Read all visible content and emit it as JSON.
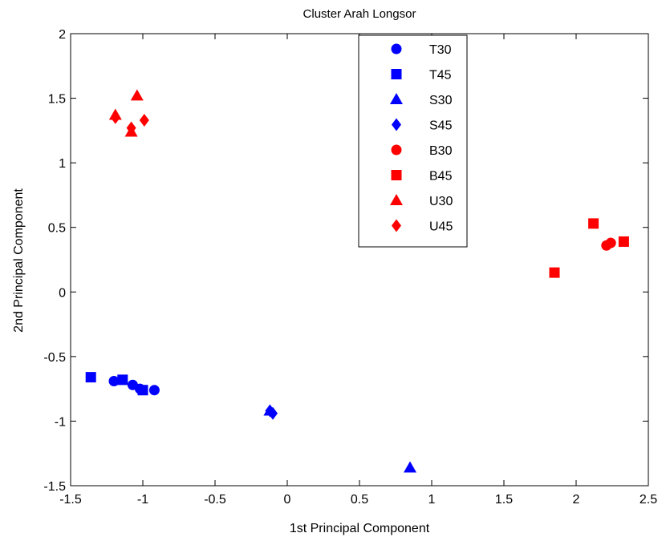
{
  "chart_data": {
    "type": "scatter",
    "title": "Cluster Arah Longsor",
    "xlabel": "1st Principal Component",
    "ylabel": "2nd Principal Component",
    "xlim": [
      -1.5,
      2.5
    ],
    "ylim": [
      -1.5,
      2
    ],
    "xticks": [
      "-1.5",
      "-1",
      "-0.5",
      "0",
      "0.5",
      "1",
      "1.5",
      "2",
      "2.5"
    ],
    "yticks": [
      "-1.5",
      "-1",
      "-0.5",
      "0",
      "0.5",
      "1",
      "1.5",
      "2"
    ],
    "grid": false,
    "legend_position": "top-center",
    "colors": {
      "blue": "#0000ff",
      "red": "#ff0000"
    },
    "series": [
      {
        "name": "T30",
        "marker": "circle",
        "color": "#0000ff",
        "points": [
          [
            -1.2,
            -0.69
          ],
          [
            -1.07,
            -0.72
          ],
          [
            -1.02,
            -0.75
          ],
          [
            -0.92,
            -0.76
          ]
        ]
      },
      {
        "name": "T45",
        "marker": "square",
        "color": "#0000ff",
        "points": [
          [
            -1.36,
            -0.66
          ],
          [
            -1.14,
            -0.68
          ],
          [
            -1.0,
            -0.76
          ]
        ]
      },
      {
        "name": "S30",
        "marker": "triangle",
        "color": "#0000ff",
        "points": [
          [
            -0.12,
            -0.92
          ],
          [
            0.85,
            -1.36
          ]
        ]
      },
      {
        "name": "S45",
        "marker": "diamond",
        "color": "#0000ff",
        "points": [
          [
            -0.1,
            -0.94
          ],
          [
            -0.12,
            -0.92
          ]
        ]
      },
      {
        "name": "B30",
        "marker": "circle",
        "color": "#ff0000",
        "points": [
          [
            2.21,
            0.36
          ],
          [
            2.24,
            0.38
          ]
        ]
      },
      {
        "name": "B45",
        "marker": "square",
        "color": "#ff0000",
        "points": [
          [
            1.85,
            0.15
          ],
          [
            2.12,
            0.53
          ],
          [
            2.33,
            0.39
          ]
        ]
      },
      {
        "name": "U30",
        "marker": "triangle",
        "color": "#ff0000",
        "points": [
          [
            -1.19,
            1.37
          ],
          [
            -1.04,
            1.52
          ],
          [
            -1.08,
            1.24
          ]
        ]
      },
      {
        "name": "U45",
        "marker": "diamond",
        "color": "#ff0000",
        "points": [
          [
            -1.19,
            1.35
          ],
          [
            -1.08,
            1.27
          ],
          [
            -0.99,
            1.33
          ]
        ]
      }
    ]
  }
}
